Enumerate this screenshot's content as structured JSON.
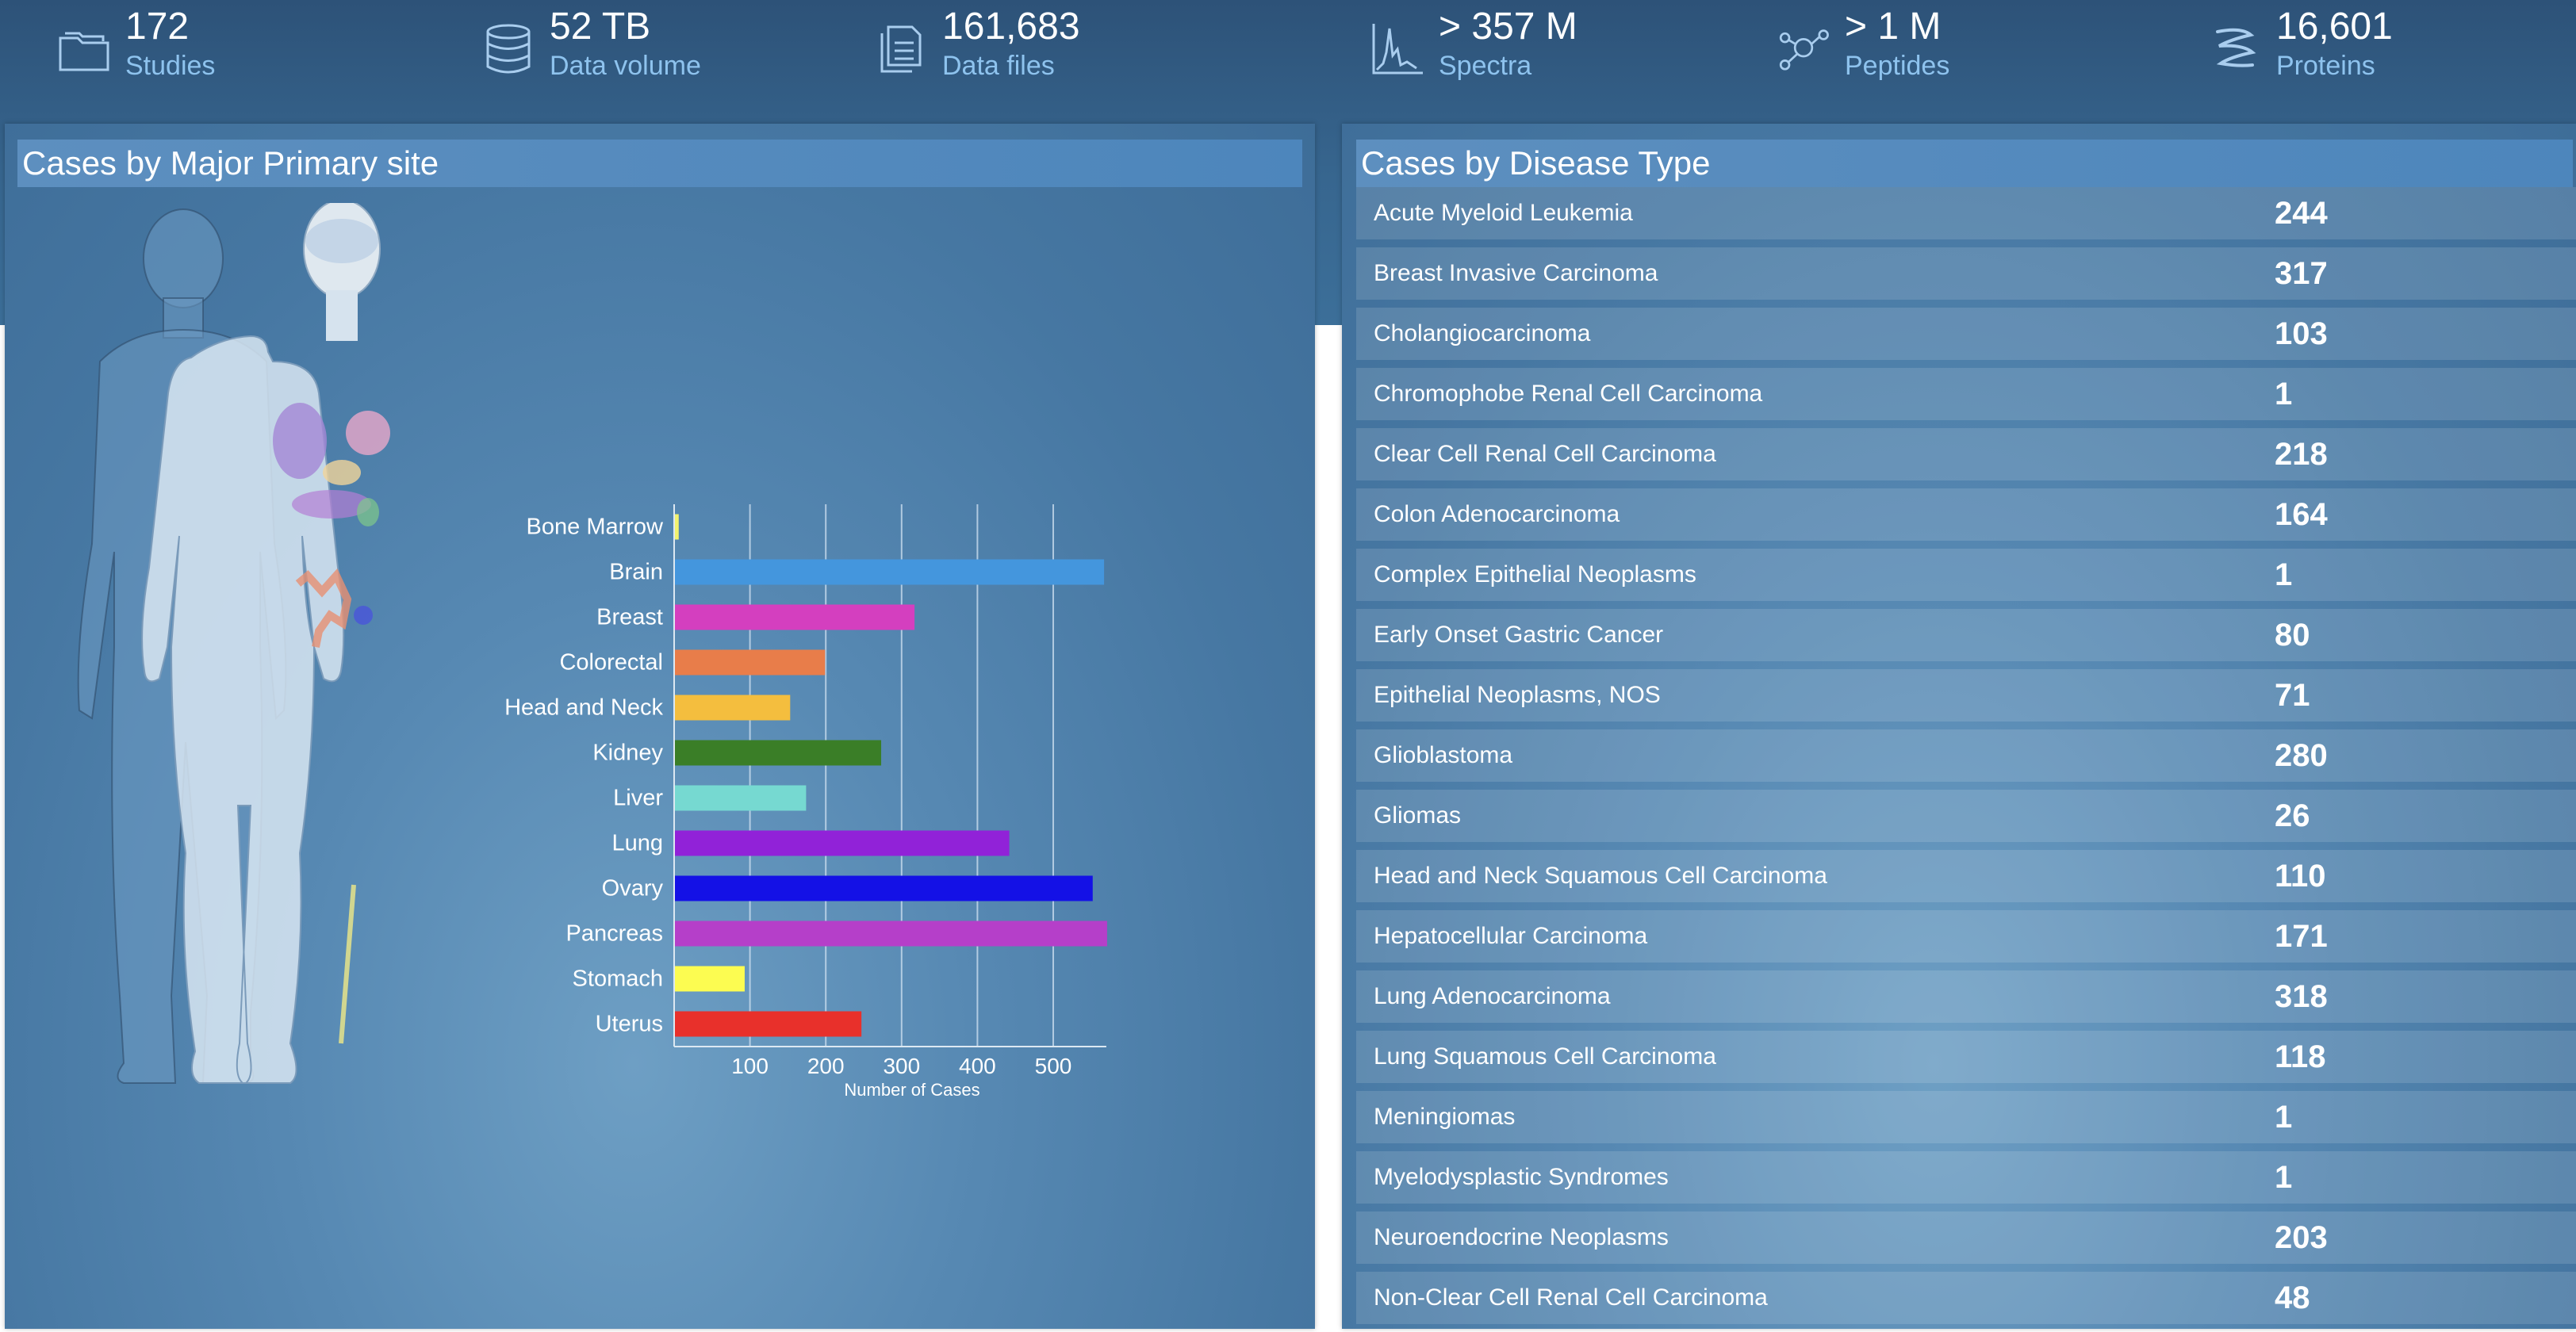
{
  "stats": [
    {
      "value": "172",
      "label": "Studies",
      "icon": "folder-icon"
    },
    {
      "value": "52 TB",
      "label": "Data volume",
      "icon": "database-icon"
    },
    {
      "value": "161,683",
      "label": "Data files",
      "icon": "files-icon"
    },
    {
      "value": "> 357 M",
      "label": "Spectra",
      "icon": "spectra-icon"
    },
    {
      "value": "> 1 M",
      "label": "Peptides",
      "icon": "peptides-icon"
    },
    {
      "value": "16,601",
      "label": "Proteins",
      "icon": "protein-icon"
    }
  ],
  "left_panel": {
    "title": "Cases by Major Primary site"
  },
  "right_panel": {
    "title": "Cases by Disease Type",
    "rows": [
      {
        "name": "Acute Myeloid Leukemia",
        "count": "244"
      },
      {
        "name": "Breast Invasive Carcinoma",
        "count": "317"
      },
      {
        "name": "Cholangiocarcinoma",
        "count": "103"
      },
      {
        "name": "Chromophobe Renal Cell Carcinoma",
        "count": "1"
      },
      {
        "name": "Clear Cell Renal Cell Carcinoma",
        "count": "218"
      },
      {
        "name": "Colon Adenocarcinoma",
        "count": "164"
      },
      {
        "name": "Complex Epithelial Neoplasms",
        "count": "1"
      },
      {
        "name": "Early Onset Gastric Cancer",
        "count": "80"
      },
      {
        "name": "Epithelial Neoplasms, NOS",
        "count": "71"
      },
      {
        "name": "Glioblastoma",
        "count": "280"
      },
      {
        "name": "Gliomas",
        "count": "26"
      },
      {
        "name": "Head and Neck Squamous Cell Carcinoma",
        "count": "110"
      },
      {
        "name": "Hepatocellular Carcinoma",
        "count": "171"
      },
      {
        "name": "Lung Adenocarcinoma",
        "count": "318"
      },
      {
        "name": "Lung Squamous Cell Carcinoma",
        "count": "118"
      },
      {
        "name": "Meningiomas",
        "count": "1"
      },
      {
        "name": "Myelodysplastic Syndromes",
        "count": "1"
      },
      {
        "name": "Neuroendocrine Neoplasms",
        "count": "203"
      },
      {
        "name": "Non-Clear Cell Renal Cell Carcinoma",
        "count": "48"
      }
    ]
  },
  "chart_data": {
    "type": "bar",
    "orientation": "horizontal",
    "title": "Cases by Major Primary site",
    "xlabel": "Number of Cases",
    "ylabel": "",
    "xlim": [
      0,
      570
    ],
    "xticks": [
      100,
      200,
      300,
      400,
      500
    ],
    "grid": true,
    "categories": [
      "Bone Marrow",
      "Brain",
      "Breast",
      "Colorectal",
      "Head and Neck",
      "Kidney",
      "Liver",
      "Lung",
      "Ovary",
      "Pancreas",
      "Stomach",
      "Uterus"
    ],
    "values": [
      5,
      566,
      316,
      198,
      152,
      272,
      173,
      441,
      551,
      570,
      92,
      246
    ],
    "colors": [
      "#f2f26e",
      "#4496dd",
      "#d43fbf",
      "#e87d4a",
      "#f4be3e",
      "#3a7e27",
      "#76d9d1",
      "#9122d8",
      "#1411e6",
      "#b53fc9",
      "#fcfc51",
      "#e8302b"
    ]
  }
}
